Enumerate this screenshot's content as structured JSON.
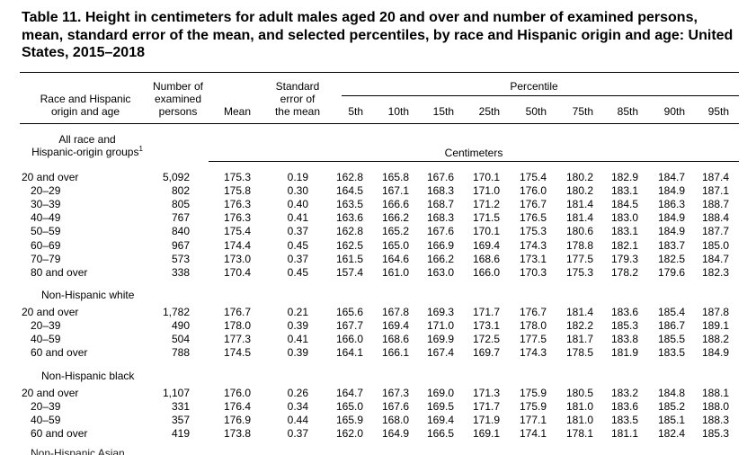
{
  "title": "Table 11. Height in centimeters for adult males aged 20 and over and number of examined persons, mean, standard error of the mean, and selected percentiles, by race and Hispanic origin and age: United States, 2015–2018",
  "headers": {
    "race_age": [
      "Race and Hispanic",
      "origin and age"
    ],
    "number": [
      "Number of",
      "examined",
      "persons"
    ],
    "mean": "Mean",
    "se": [
      "Standard",
      "error of",
      "the mean"
    ],
    "percentile_group": "Percentile",
    "percentiles": [
      "5th",
      "10th",
      "15th",
      "25th",
      "50th",
      "75th",
      "85th",
      "90th",
      "95th"
    ],
    "units": "Centimeters"
  },
  "sections": [
    {
      "title": [
        "All race and",
        "Hispanic-origin groups"
      ],
      "footnote": "1",
      "rows": [
        {
          "label": "20 and over",
          "indent": false,
          "values": [
            "5,092",
            "175.3",
            "0.19",
            "162.8",
            "165.8",
            "167.6",
            "170.1",
            "175.4",
            "180.2",
            "182.9",
            "184.7",
            "187.4"
          ]
        },
        {
          "label": "20–29",
          "indent": true,
          "values": [
            "802",
            "175.8",
            "0.30",
            "164.5",
            "167.1",
            "168.3",
            "171.0",
            "176.0",
            "180.2",
            "183.1",
            "184.9",
            "187.1"
          ]
        },
        {
          "label": "30–39",
          "indent": true,
          "values": [
            "805",
            "176.3",
            "0.40",
            "163.5",
            "166.6",
            "168.7",
            "171.2",
            "176.7",
            "181.4",
            "184.5",
            "186.3",
            "188.7"
          ]
        },
        {
          "label": "40–49",
          "indent": true,
          "values": [
            "767",
            "176.3",
            "0.41",
            "163.6",
            "166.2",
            "168.3",
            "171.5",
            "176.5",
            "181.4",
            "183.0",
            "184.9",
            "188.4"
          ]
        },
        {
          "label": "50–59",
          "indent": true,
          "values": [
            "840",
            "175.4",
            "0.37",
            "162.8",
            "165.2",
            "167.6",
            "170.1",
            "175.3",
            "180.6",
            "183.1",
            "184.9",
            "187.7"
          ]
        },
        {
          "label": "60–69",
          "indent": true,
          "values": [
            "967",
            "174.4",
            "0.45",
            "162.5",
            "165.0",
            "166.9",
            "169.4",
            "174.3",
            "178.8",
            "182.1",
            "183.7",
            "185.0"
          ]
        },
        {
          "label": "70–79",
          "indent": true,
          "values": [
            "573",
            "173.0",
            "0.37",
            "161.5",
            "164.6",
            "166.2",
            "168.6",
            "173.1",
            "177.5",
            "179.3",
            "182.5",
            "184.7"
          ]
        },
        {
          "label": "80 and over",
          "indent": true,
          "values": [
            "338",
            "170.4",
            "0.45",
            "157.4",
            "161.0",
            "163.0",
            "166.0",
            "170.3",
            "175.3",
            "178.2",
            "179.6",
            "182.3"
          ]
        }
      ]
    },
    {
      "title": [
        "Non-Hispanic white"
      ],
      "rows": [
        {
          "label": "20 and over",
          "indent": false,
          "values": [
            "1,782",
            "176.7",
            "0.21",
            "165.6",
            "167.8",
            "169.3",
            "171.7",
            "176.7",
            "181.4",
            "183.6",
            "185.4",
            "187.8"
          ]
        },
        {
          "label": "20–39",
          "indent": true,
          "values": [
            "490",
            "178.0",
            "0.39",
            "167.7",
            "169.4",
            "171.0",
            "173.1",
            "178.0",
            "182.2",
            "185.3",
            "186.7",
            "189.1"
          ]
        },
        {
          "label": "40–59",
          "indent": true,
          "values": [
            "504",
            "177.3",
            "0.41",
            "166.0",
            "168.6",
            "169.9",
            "172.5",
            "177.5",
            "181.7",
            "183.8",
            "185.5",
            "188.2"
          ]
        },
        {
          "label": "60 and over",
          "indent": true,
          "values": [
            "788",
            "174.5",
            "0.39",
            "164.1",
            "166.1",
            "167.4",
            "169.7",
            "174.3",
            "178.5",
            "181.9",
            "183.5",
            "184.9"
          ]
        }
      ]
    },
    {
      "title": [
        "Non-Hispanic black"
      ],
      "rows": [
        {
          "label": "20 and over",
          "indent": false,
          "values": [
            "1,107",
            "176.0",
            "0.26",
            "164.7",
            "167.3",
            "169.0",
            "171.3",
            "175.9",
            "180.5",
            "183.2",
            "184.8",
            "188.1"
          ]
        },
        {
          "label": "20–39",
          "indent": true,
          "values": [
            "331",
            "176.4",
            "0.34",
            "165.0",
            "167.6",
            "169.5",
            "171.7",
            "175.9",
            "181.0",
            "183.6",
            "185.2",
            "188.0"
          ]
        },
        {
          "label": "40–59",
          "indent": true,
          "values": [
            "357",
            "176.9",
            "0.44",
            "165.9",
            "168.0",
            "169.4",
            "171.9",
            "177.1",
            "181.0",
            "183.5",
            "185.1",
            "188.3"
          ]
        },
        {
          "label": "60 and over",
          "indent": true,
          "values": [
            "419",
            "173.8",
            "0.37",
            "162.0",
            "164.9",
            "166.5",
            "169.1",
            "174.1",
            "178.1",
            "181.1",
            "182.4",
            "185.3"
          ]
        }
      ]
    }
  ]
}
